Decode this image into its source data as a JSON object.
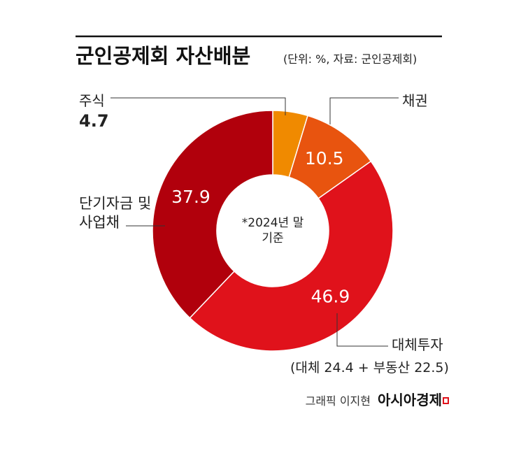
{
  "chart_data": {
    "type": "donut",
    "title": "군인공제회 자산배분",
    "subtitle": "(단위: %, 자료: 군인공제회)",
    "categories": [
      "주식",
      "채권",
      "대체투자",
      "단기자금 및 사업채"
    ],
    "values": [
      4.7,
      10.5,
      46.9,
      37.9
    ],
    "colors": [
      "#f08a00",
      "#e8540f",
      "#e0121b",
      "#b1000c"
    ],
    "annotation": "*2024년 말 기준",
    "note": "(대체 24.4 + 부동산 22.5)",
    "credit": "그래픽 이지현",
    "source_logo": "아시아경제"
  }
}
